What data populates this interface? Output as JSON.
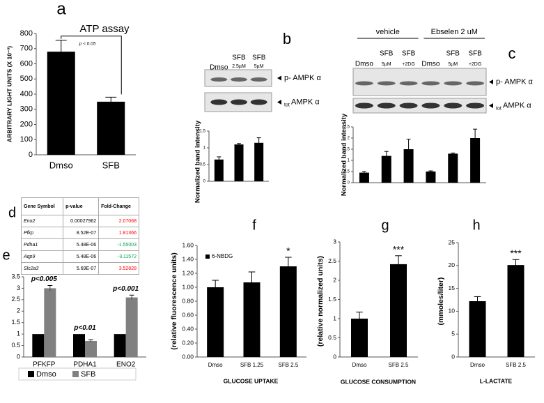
{
  "chart_data": [
    {
      "type": "bar",
      "panel": "a",
      "title": "ATP assay",
      "ylabel": "ARBITRARY LIGHT UNITS (X 10⁻³)",
      "categories": [
        "Dmso",
        "SFB"
      ],
      "series": [
        {
          "color": "#000000",
          "values": [
            680,
            350
          ],
          "errors": [
            75,
            30
          ]
        }
      ],
      "ylim": [
        0,
        800
      ],
      "yticks": [
        0,
        100,
        200,
        300,
        400,
        500,
        600,
        700,
        800
      ],
      "annotations": [
        "p < 0.05"
      ]
    },
    {
      "type": "bar",
      "panel": "b",
      "ylabel": "Normalized band intensity",
      "series": [
        {
          "color": "#000000",
          "values": [
            0.65,
            1.1,
            1.15
          ],
          "errors": [
            0.08,
            0.03,
            0.15
          ]
        }
      ],
      "ylim": [
        0,
        1.5
      ],
      "yticks": [
        0,
        0.5,
        1,
        1.5
      ]
    },
    {
      "type": "bar",
      "panel": "c",
      "ylabel": "Normalized  band intensity",
      "series": [
        {
          "color": "#000000",
          "values": [
            0.45,
            1.2,
            1.5,
            0.5,
            1.3,
            2.0
          ],
          "errors": [
            0.05,
            0.2,
            0.45,
            0.03,
            0.03,
            0.4
          ]
        }
      ],
      "ylim": [
        0,
        2.5
      ],
      "yticks": [
        0,
        0.5,
        1,
        1.5,
        2,
        2.5
      ]
    },
    {
      "type": "bar",
      "panel": "e",
      "categories": [
        "PFKFP",
        "PDHA1",
        "ENO2"
      ],
      "series": [
        {
          "name": "Dmso",
          "color": "#000000",
          "values": [
            1,
            1,
            1
          ]
        },
        {
          "name": "SFB",
          "color": "#808080",
          "values": [
            3.0,
            0.7,
            2.6
          ],
          "errors": [
            0.12,
            0.05,
            0.1
          ]
        }
      ],
      "ylim": [
        0,
        3.5
      ],
      "yticks": [
        0,
        0.5,
        1,
        1.5,
        2,
        2.5,
        3,
        3.5
      ],
      "annotations": [
        "p<0.005",
        "p<0.01",
        "p<0.001"
      ],
      "legend": "bottom"
    },
    {
      "type": "bar",
      "panel": "f",
      "ylabel": "(relative  fluorescence units)",
      "xlabel": "GLUCOSE UPTAKE",
      "categories": [
        "Dmso",
        "SFB 1.25",
        "SFB 2.5"
      ],
      "series": [
        {
          "name": "6-NBDG",
          "color": "#000000",
          "values": [
            1.0,
            1.07,
            1.3
          ],
          "errors": [
            0.1,
            0.15,
            0.13
          ]
        }
      ],
      "ylim": [
        0,
        1.6
      ],
      "yticks": [
        {
          "value": 0,
          "label": "0.00"
        },
        {
          "value": 0.2,
          "label": "0.20"
        },
        {
          "value": 0.4,
          "label": "0.40"
        },
        {
          "value": 0.6,
          "label": "0.60"
        },
        {
          "value": 0.8,
          "label": "0.80"
        },
        {
          "value": 1.0,
          "label": "1.00"
        },
        {
          "value": 1.2,
          "label": "1.20"
        },
        {
          "value": 1.4,
          "label": "1.40"
        },
        {
          "value": 1.6,
          "label": "1.60"
        }
      ],
      "annotations": [
        "*"
      ],
      "legend": "top-left"
    },
    {
      "type": "bar",
      "panel": "g",
      "ylabel": "(relative  normalized units)",
      "xlabel": "GLUCOSE CONSUMPTION",
      "categories": [
        "Dmso",
        "SFB 2.5"
      ],
      "series": [
        {
          "color": "#000000",
          "values": [
            1.0,
            2.42
          ],
          "errors": [
            0.17,
            0.22
          ]
        }
      ],
      "ylim": [
        0,
        3
      ],
      "yticks": [
        0,
        0.5,
        1,
        1.5,
        2,
        2.5,
        3
      ],
      "annotations": [
        "***"
      ]
    },
    {
      "type": "bar",
      "panel": "h",
      "ylabel": "(mmoles/liter)",
      "xlabel": "L-LACTATE",
      "categories": [
        "Dmso",
        "SFB 2.5"
      ],
      "series": [
        {
          "color": "#000000",
          "values": [
            12.2,
            20.1
          ],
          "errors": [
            1.0,
            1.2
          ]
        }
      ],
      "ylim": [
        0,
        25
      ],
      "yticks": [
        0,
        5,
        10,
        15,
        20,
        25
      ],
      "annotations": [
        "***"
      ]
    }
  ],
  "blots": [
    {
      "chart": 1,
      "lanes": [
        {
          "name": "Dmso"
        },
        {
          "name": "SFB",
          "dose": "2.5µM"
        },
        {
          "name": "SFB",
          "dose": "5µM"
        }
      ],
      "rows": [
        {
          "label": "p- AMPK α"
        },
        {
          "sub": "tot",
          "label": "AMPK α"
        }
      ]
    },
    {
      "chart": 2,
      "groups": [
        "vehicle",
        "Ebselen 2 uM"
      ],
      "lanes": [
        {
          "name": "Dmso"
        },
        {
          "name": "SFB",
          "dose": "5µM"
        },
        {
          "name": "SFB",
          "dose": "+2DG"
        },
        {
          "name": "Dmso"
        },
        {
          "name": "SFB",
          "dose": "5µM"
        },
        {
          "name": "SFB",
          "dose": "+2DG"
        }
      ],
      "rows": [
        {
          "label": "p- AMPK α"
        },
        {
          "sub": "tot",
          "label": "AMPK α"
        }
      ]
    }
  ],
  "table": {
    "panel": "d",
    "header": [
      "Gene Symbol",
      "p-value",
      "Fold-Change"
    ],
    "rows": [
      [
        "Eno2",
        "0.00027962",
        "2.07068"
      ],
      [
        "Pfkp",
        "8.52E-07",
        "1.81366"
      ],
      [
        "Pdha1",
        "5.48E-06",
        "-1.55003"
      ],
      [
        "Aqp9",
        "5.48E-06",
        "-3.11572"
      ],
      [
        "Slc2a3",
        "5.69E-07",
        "3.52828"
      ]
    ],
    "fold_colors": [
      "#ff0000",
      "#ff0000",
      "#00a050",
      "#00a050",
      "#ff0000"
    ]
  }
}
